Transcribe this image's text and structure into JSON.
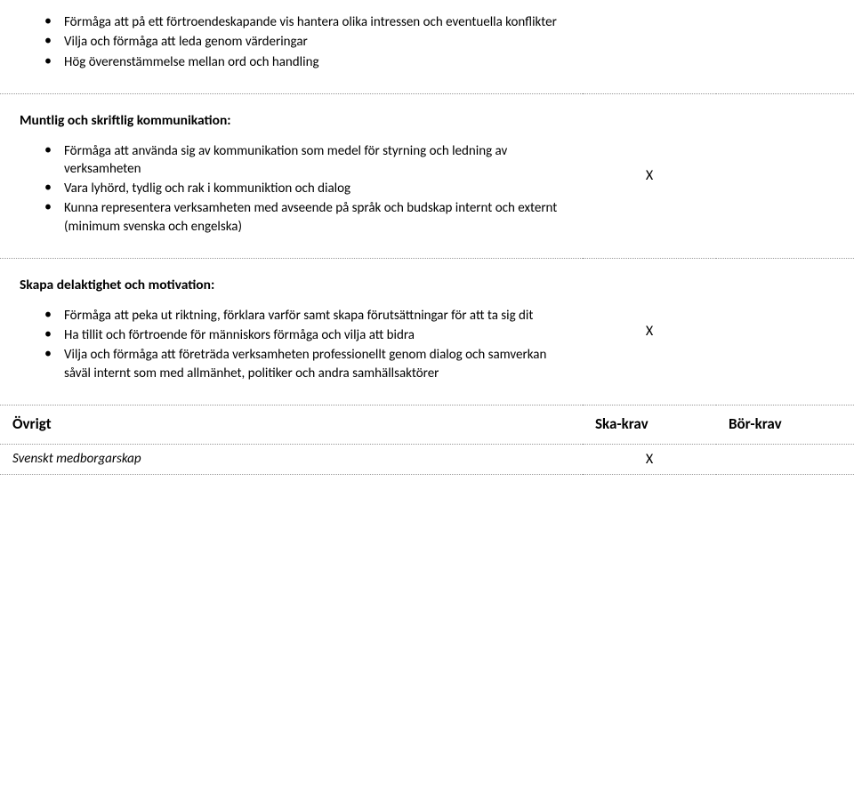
{
  "rows": {
    "r1": {
      "items": [
        "Förmåga att på ett förtroendeskapande vis hantera olika intressen och eventuella konflikter",
        "Vilja och förmåga att leda genom värderingar",
        "Hög överenstämmelse mellan ord och handling"
      ],
      "mark2": "",
      "mark3": ""
    },
    "r2": {
      "title": "Muntlig och skriftlig kommunikation:",
      "items": [
        "Förmåga att använda sig av kommunikation som medel för styrning och ledning av verksamheten",
        "Vara lyhörd, tydlig och rak i kommuniktion och dialog",
        "Kunna representera verksamheten med avseende på språk och budskap internt och externt (minimum svenska och engelska)"
      ],
      "mark2": "X",
      "mark3": ""
    },
    "r3": {
      "title": "Skapa delaktighet och motivation:",
      "items": [
        "Förmåga att peka ut riktning, förklara varför samt skapa förutsättningar för att ta sig dit",
        "Ha tillit och förtroende för människors förmåga och vilja att bidra",
        "Vilja och förmåga att företräda verksamheten professionellt  genom dialog och samverkan såväl internt som med allmänhet, politiker och andra samhällsaktörer"
      ],
      "mark2": "X",
      "mark3": ""
    }
  },
  "header": {
    "col1": "Övrigt",
    "col2": "Ska-krav",
    "col3": "Bör-krav"
  },
  "subrow": {
    "label": "Svenskt medborgarskap",
    "mark2": "X",
    "mark3": ""
  }
}
